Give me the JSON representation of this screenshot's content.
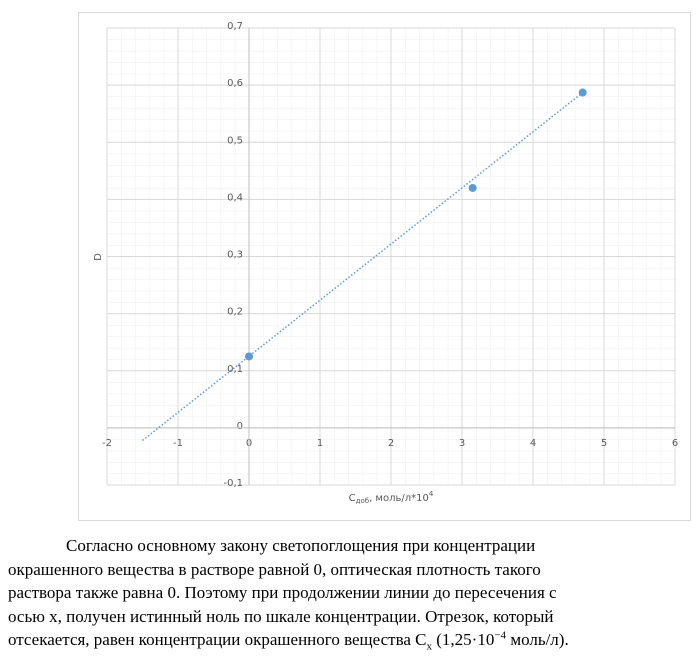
{
  "chart_data": {
    "type": "scatter",
    "ylabel": "D",
    "xlabel": {
      "main": "C",
      "sub": "доб",
      "rest": ", моль/л*10",
      "sup": "4"
    },
    "series": [
      {
        "color": "#5b9bd5",
        "x": [
          0,
          3.15,
          4.7
        ],
        "values": [
          0.125,
          0.42,
          0.587
        ]
      }
    ],
    "trendline": {
      "color": "#5b9bd5",
      "x": [
        -1.5,
        4.7
      ],
      "values": [
        -0.022,
        0.587
      ]
    },
    "xlim": [
      -2,
      6
    ],
    "ylim": [
      -0.1,
      0.7
    ],
    "xticks": [
      -2,
      -1,
      0,
      1,
      2,
      3,
      4,
      5,
      6
    ],
    "yticks": [
      {
        "value": -0.1,
        "label": "-0,1"
      },
      0,
      {
        "value": 0.1,
        "label": "0,1"
      },
      {
        "value": 0.2,
        "label": "0,2"
      },
      {
        "value": 0.3,
        "label": "0,3"
      },
      {
        "value": 0.4,
        "label": "0,4"
      },
      {
        "value": 0.5,
        "label": "0,5"
      },
      {
        "value": 0.6,
        "label": "0,6"
      },
      {
        "value": 0.7,
        "label": "0,7"
      }
    ],
    "grid": true
  },
  "paragraph": {
    "lines": [
      "Согласно основному закону светопоглощения при концентрации",
      "окрашенного вещества в растворе равной 0, оптическая плотность такого",
      "раствора также равна 0. Поэтому при продолжении линии до пересечения с",
      "осью х, получен истинный ноль по шкале концентрации. Отрезок, который"
    ],
    "last_line": {
      "a": "отсекается, равен концентрации окрашенного вещества C",
      "sub": "x",
      "b": " (1,25·10",
      "sup": "−4",
      "c": " моль/л)."
    }
  }
}
